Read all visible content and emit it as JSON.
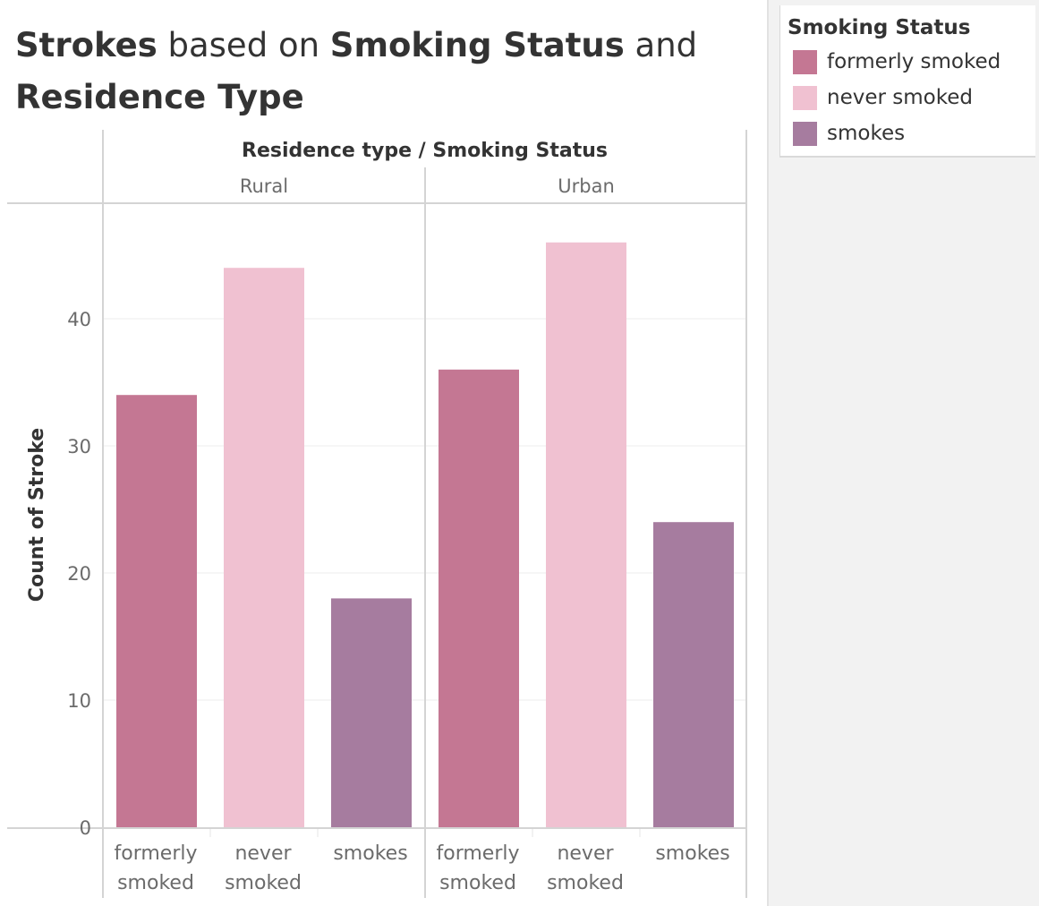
{
  "title": {
    "part1": "Strokes",
    "part2": " based on ",
    "part3": "Smoking Status",
    "part4": " and ",
    "part5": "Residence Type"
  },
  "legend": {
    "title": "Smoking Status",
    "items": [
      {
        "label": "formerly smoked",
        "color": "#c47793"
      },
      {
        "label": "never smoked",
        "color": "#f0c1d1"
      },
      {
        "label": "smokes",
        "color": "#a67c9f"
      }
    ]
  },
  "chart_data": {
    "type": "bar",
    "column_header": "Residence type / Smoking Status",
    "panels": [
      "Rural",
      "Urban"
    ],
    "categories": [
      "formerly smoked",
      "never smoked",
      "smokes"
    ],
    "category_labels": [
      [
        "formerly",
        "smoked"
      ],
      [
        "never",
        "smoked"
      ],
      [
        "smokes"
      ]
    ],
    "colors": [
      "#c47793",
      "#f0c1d1",
      "#a67c9f"
    ],
    "series": [
      {
        "values": [
          34,
          44,
          18
        ]
      },
      {
        "values": [
          36,
          46,
          24
        ]
      }
    ],
    "ylabel": "Count of Stroke",
    "yticks": [
      0,
      10,
      20,
      30,
      40
    ],
    "ylim": [
      0,
      50
    ],
    "grid": true
  }
}
